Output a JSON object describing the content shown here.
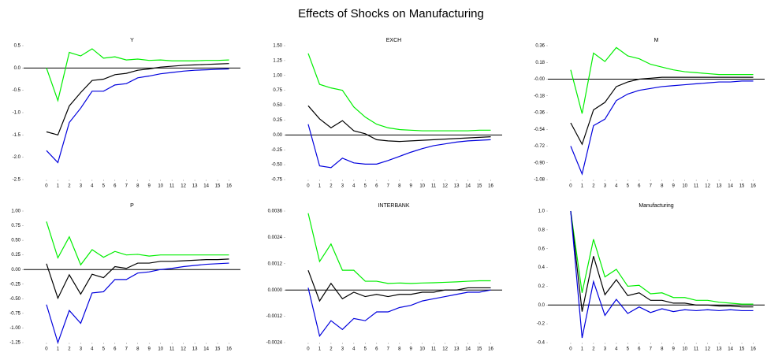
{
  "title": "Effects of Shocks on Manufacturing",
  "chart_data": [
    {
      "type": "line",
      "title": "Y",
      "x": [
        0,
        1,
        2,
        3,
        4,
        5,
        6,
        7,
        8,
        9,
        10,
        11,
        12,
        13,
        14,
        15,
        16
      ],
      "xlim": [
        -2,
        17
      ],
      "xticks": [
        0,
        1,
        2,
        3,
        4,
        5,
        6,
        7,
        8,
        9,
        10,
        11,
        12,
        13,
        14,
        15,
        16
      ],
      "ylim": [
        -2.5,
        0.5
      ],
      "yticks": [
        0.5,
        {
          "value": 0,
          "label": "0.0"
        },
        -0.5,
        {
          "value": -1,
          "label": "-1.0"
        },
        -1.5,
        {
          "value": -2,
          "label": "-2.0"
        },
        -2.5
      ],
      "series": [
        {
          "color": "#00ee00",
          "values": [
            0,
            -0.73,
            0.35,
            0.27,
            0.43,
            0.22,
            0.25,
            0.18,
            0.2,
            0.17,
            0.18,
            0.16,
            0.16,
            0.16,
            0.17,
            0.17,
            0.18
          ]
        },
        {
          "color": "#000000",
          "values": [
            -1.43,
            -1.5,
            -0.85,
            -0.55,
            -0.28,
            -0.25,
            -0.15,
            -0.12,
            -0.05,
            -0.02,
            0.02,
            0.04,
            0.06,
            0.07,
            0.08,
            0.09,
            0.1
          ]
        },
        {
          "color": "#0000dd",
          "values": [
            -1.85,
            -2.12,
            -1.22,
            -0.9,
            -0.52,
            -0.52,
            -0.38,
            -0.35,
            -0.22,
            -0.18,
            -0.13,
            -0.1,
            -0.07,
            -0.05,
            -0.04,
            -0.03,
            -0.02
          ]
        }
      ]
    },
    {
      "type": "line",
      "title": "EXCH",
      "x": [
        0,
        1,
        2,
        3,
        4,
        5,
        6,
        7,
        8,
        9,
        10,
        11,
        12,
        13,
        14,
        15,
        16
      ],
      "xlim": [
        -2,
        17
      ],
      "xticks": [
        0,
        1,
        2,
        3,
        4,
        5,
        6,
        7,
        8,
        9,
        10,
        11,
        12,
        13,
        14,
        15,
        16
      ],
      "ylim": [
        -0.75,
        1.5
      ],
      "yticks": [
        {
          "value": 1.5,
          "label": "1.50"
        },
        1.25,
        {
          "value": 1,
          "label": "1.00"
        },
        0.75,
        {
          "value": 0.5,
          "label": "0.50"
        },
        0.25,
        {
          "value": 0,
          "label": "0.00"
        },
        -0.25,
        {
          "value": -0.5,
          "label": "-0.50"
        },
        -0.75
      ],
      "series": [
        {
          "color": "#00ee00",
          "values": [
            1.37,
            0.85,
            0.79,
            0.75,
            0.47,
            0.3,
            0.18,
            0.12,
            0.09,
            0.08,
            0.07,
            0.07,
            0.07,
            0.07,
            0.07,
            0.08,
            0.08
          ]
        },
        {
          "color": "#000000",
          "values": [
            0.49,
            0.27,
            0.12,
            0.24,
            0.07,
            0.02,
            -0.08,
            -0.1,
            -0.11,
            -0.1,
            -0.09,
            -0.08,
            -0.07,
            -0.06,
            -0.05,
            -0.04,
            -0.03
          ]
        },
        {
          "color": "#0000dd",
          "values": [
            0.18,
            -0.52,
            -0.55,
            -0.39,
            -0.47,
            -0.49,
            -0.49,
            -0.43,
            -0.36,
            -0.29,
            -0.23,
            -0.18,
            -0.15,
            -0.12,
            -0.1,
            -0.09,
            -0.08
          ]
        }
      ]
    },
    {
      "type": "line",
      "title": "M",
      "x": [
        0,
        1,
        2,
        3,
        4,
        5,
        6,
        7,
        8,
        9,
        10,
        11,
        12,
        13,
        14,
        15,
        16
      ],
      "xlim": [
        -2,
        17
      ],
      "xticks": [
        0,
        1,
        2,
        3,
        4,
        5,
        6,
        7,
        8,
        9,
        10,
        11,
        12,
        13,
        14,
        15,
        16
      ],
      "ylim": [
        -1.08,
        0.36
      ],
      "yticks": [
        0.36,
        0.18,
        {
          "value": 0,
          "label": "-0.00"
        },
        -0.18,
        -0.36,
        -0.54,
        -0.72,
        {
          "value": -0.9,
          "label": "-0.90"
        },
        -1.08
      ],
      "series": [
        {
          "color": "#00ee00",
          "values": [
            0.1,
            -0.37,
            0.28,
            0.19,
            0.34,
            0.25,
            0.22,
            0.16,
            0.13,
            0.1,
            0.08,
            0.07,
            0.06,
            0.05,
            0.05,
            0.05,
            0.05
          ]
        },
        {
          "color": "#000000",
          "values": [
            -0.47,
            -0.7,
            -0.33,
            -0.25,
            -0.08,
            -0.03,
            0,
            0.01,
            0.02,
            0.02,
            0.02,
            0.02,
            0.02,
            0.02,
            0.02,
            0.02,
            0.02
          ]
        },
        {
          "color": "#0000dd",
          "values": [
            -0.72,
            -1.02,
            -0.5,
            -0.43,
            -0.23,
            -0.16,
            -0.12,
            -0.1,
            -0.08,
            -0.07,
            -0.06,
            -0.05,
            -0.04,
            -0.03,
            -0.03,
            -0.02,
            -0.02
          ]
        }
      ]
    },
    {
      "type": "line",
      "title": "P",
      "x": [
        0,
        1,
        2,
        3,
        4,
        5,
        6,
        7,
        8,
        9,
        10,
        11,
        12,
        13,
        14,
        15,
        16
      ],
      "xlim": [
        -2,
        17
      ],
      "xticks": [
        0,
        1,
        2,
        3,
        4,
        5,
        6,
        7,
        8,
        9,
        10,
        11,
        12,
        13,
        14,
        15,
        16
      ],
      "ylim": [
        -1.25,
        1.0
      ],
      "yticks": [
        {
          "value": 1,
          "label": "1.00"
        },
        0.75,
        {
          "value": 0.5,
          "label": "0.50"
        },
        0.25,
        {
          "value": 0,
          "label": "0.00"
        },
        -0.25,
        {
          "value": -0.5,
          "label": "-0.50"
        },
        -0.75,
        {
          "value": -1,
          "label": "-1.00"
        },
        -1.25
      ],
      "series": [
        {
          "color": "#00ee00",
          "values": [
            0.82,
            0.2,
            0.56,
            0.08,
            0.34,
            0.21,
            0.31,
            0.25,
            0.26,
            0.23,
            0.25,
            0.25,
            0.25,
            0.25,
            0.25,
            0.25,
            0.25
          ]
        },
        {
          "color": "#000000",
          "values": [
            0.1,
            -0.49,
            -0.09,
            -0.42,
            -0.08,
            -0.14,
            0.05,
            0.02,
            0.11,
            0.11,
            0.14,
            0.14,
            0.15,
            0.16,
            0.17,
            0.17,
            0.18
          ]
        },
        {
          "color": "#0000dd",
          "values": [
            -0.6,
            -1.25,
            -0.7,
            -0.92,
            -0.4,
            -0.38,
            -0.17,
            -0.17,
            -0.06,
            -0.04,
            0,
            0.02,
            0.05,
            0.07,
            0.09,
            0.1,
            0.11
          ]
        }
      ]
    },
    {
      "type": "line",
      "title": "INTERBANK",
      "x": [
        0,
        1,
        2,
        3,
        4,
        5,
        6,
        7,
        8,
        9,
        10,
        11,
        12,
        13,
        14,
        15,
        16
      ],
      "xlim": [
        -2,
        17
      ],
      "xticks": [
        0,
        1,
        2,
        3,
        4,
        5,
        6,
        7,
        8,
        9,
        10,
        11,
        12,
        13,
        14,
        15,
        16
      ],
      "ylim": [
        -0.0024,
        0.0036
      ],
      "yticks": [
        0.0036,
        0.0024,
        0.0012,
        {
          "value": 0,
          "label": "0.0000"
        },
        -0.0012,
        -0.0024
      ],
      "series": [
        {
          "color": "#00ee00",
          "values": [
            0.0035,
            0.0013,
            0.0021,
            0.0009,
            0.0009,
            0.0004,
            0.0004,
            0.0003,
            0.00032,
            0.0003,
            0.00032,
            0.00033,
            0.00035,
            0.00037,
            0.0004,
            0.00042,
            0.00042
          ]
        },
        {
          "color": "#000000",
          "values": [
            0.0009,
            -0.0005,
            0.0003,
            -0.0004,
            -0.0001,
            -0.0003,
            -0.0002,
            -0.0003,
            -0.0002,
            -0.0002,
            -0.0001,
            -0.0001,
            0,
            0,
            0.0001,
            0.0001,
            0.0001
          ]
        },
        {
          "color": "#0000dd",
          "values": [
            0.0001,
            -0.0021,
            -0.0014,
            -0.0018,
            -0.0013,
            -0.0014,
            -0.001,
            -0.001,
            -0.0008,
            -0.0007,
            -0.0005,
            -0.0004,
            -0.0003,
            -0.0002,
            -0.0001,
            -0.0001,
            0
          ]
        }
      ]
    },
    {
      "type": "line",
      "title": "Manufacturing",
      "x": [
        0,
        1,
        2,
        3,
        4,
        5,
        6,
        7,
        8,
        9,
        10,
        11,
        12,
        13,
        14,
        15,
        16
      ],
      "xlim": [
        -2,
        17
      ],
      "xticks": [
        0,
        1,
        2,
        3,
        4,
        5,
        6,
        7,
        8,
        9,
        10,
        11,
        12,
        13,
        14,
        15,
        16
      ],
      "ylim": [
        -0.4,
        1.0
      ],
      "yticks": [
        {
          "value": 1,
          "label": "1.0"
        },
        0.8,
        0.6,
        0.4,
        0.2,
        {
          "value": 0,
          "label": "0.0"
        },
        -0.2,
        -0.4
      ],
      "series": [
        {
          "color": "#00ee00",
          "values": [
            1.0,
            0.13,
            0.7,
            0.3,
            0.38,
            0.2,
            0.21,
            0.12,
            0.13,
            0.08,
            0.08,
            0.05,
            0.05,
            0.03,
            0.02,
            0.01,
            0.01
          ]
        },
        {
          "color": "#000000",
          "values": [
            1.0,
            -0.07,
            0.52,
            0.11,
            0.27,
            0.1,
            0.13,
            0.05,
            0.05,
            0.02,
            0.02,
            0,
            0,
            -0.01,
            -0.01,
            -0.02,
            -0.02
          ]
        },
        {
          "color": "#0000dd",
          "values": [
            1.0,
            -0.35,
            0.25,
            -0.11,
            0.06,
            -0.09,
            -0.02,
            -0.08,
            -0.04,
            -0.07,
            -0.05,
            -0.06,
            -0.05,
            -0.06,
            -0.05,
            -0.06,
            -0.06
          ]
        }
      ]
    }
  ]
}
